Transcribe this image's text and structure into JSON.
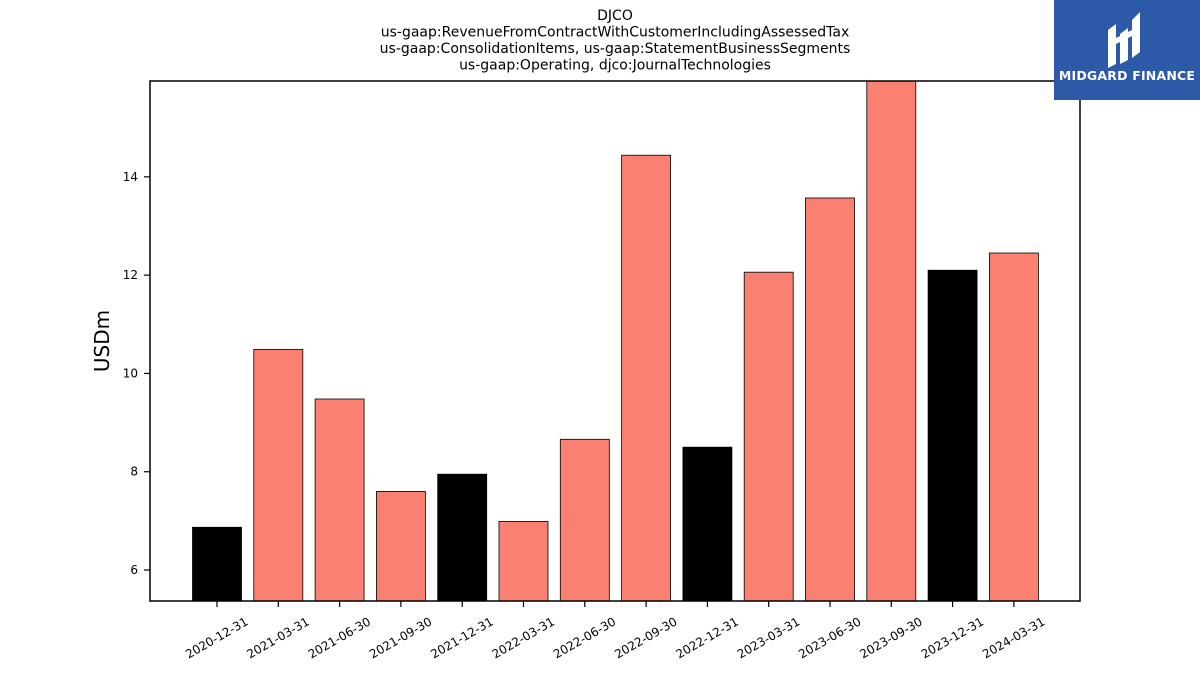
{
  "chart_data": {
    "type": "bar",
    "title_lines": [
      "DJCO",
      "us-gaap:RevenueFromContractWithCustomerIncludingAssessedTax",
      "us-gaap:ConsolidationItems, us-gaap:StatementBusinessSegments",
      "us-gaap:Operating, djco:JournalTechnologies"
    ],
    "ylabel": "USDm",
    "ylim": [
      5.37,
      15.95
    ],
    "yticks": [
      6,
      8,
      10,
      12,
      14
    ],
    "categories": [
      "2020-12-31",
      "2021-03-31",
      "2021-06-30",
      "2021-09-30",
      "2021-12-31",
      "2022-03-31",
      "2022-06-30",
      "2022-09-30",
      "2022-12-31",
      "2023-03-31",
      "2023-06-30",
      "2023-09-30",
      "2023-12-31",
      "2024-03-31"
    ],
    "values": [
      6.87,
      10.49,
      9.48,
      7.6,
      7.95,
      6.99,
      8.66,
      14.44,
      8.5,
      12.06,
      13.57,
      15.98,
      12.1,
      12.45
    ],
    "bar_colors": [
      "#000000",
      "#fa8072",
      "#fa8072",
      "#fa8072",
      "#000000",
      "#fa8072",
      "#fa8072",
      "#fa8072",
      "#000000",
      "#fa8072",
      "#fa8072",
      "#fa8072",
      "#000000",
      "#fa8072"
    ],
    "grid": false
  },
  "logo": {
    "text": "MIDGARD FINANCE",
    "background": "#2d5aa8"
  }
}
